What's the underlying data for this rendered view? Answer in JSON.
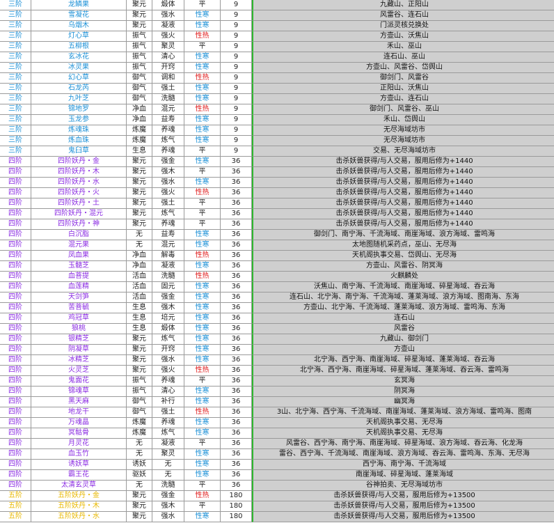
{
  "colors": {
    "grade_3": "#1a8fd6",
    "grade_4": "#8a2be2",
    "grade_5": "#e8b800",
    "hot": "#e01818",
    "cold": "#1a8fd6",
    "source_bg": "#cfcfcf",
    "divider": "#2eb82e"
  },
  "rows": [
    {
      "grade": "三阶",
      "name": "龙鳞果",
      "effect": "聚元",
      "prop": "煅体",
      "temp": "平",
      "level": "9",
      "source": "九藏山、正阳山"
    },
    {
      "grade": "三阶",
      "name": "雪凝花",
      "effect": "聚元",
      "prop": "强水",
      "temp": "性寒",
      "level": "9",
      "source": "风雷谷、连石山"
    },
    {
      "grade": "三阶",
      "name": "乌烟木",
      "effect": "聚元",
      "prop": "凝液",
      "temp": "性寒",
      "level": "9",
      "source": "门派灵核兑换处"
    },
    {
      "grade": "三阶",
      "name": "灯心草",
      "effect": "振气",
      "prop": "强火",
      "temp": "性热",
      "level": "9",
      "source": "方壶山、沃焦山"
    },
    {
      "grade": "三阶",
      "name": "五柳根",
      "effect": "振气",
      "prop": "聚灵",
      "temp": "平",
      "level": "9",
      "source": "禾山、巫山"
    },
    {
      "grade": "三阶",
      "name": "玄冰花",
      "effect": "振气",
      "prop": "清心",
      "temp": "性寒",
      "level": "9",
      "source": "连石山、巫山"
    },
    {
      "grade": "三阶",
      "name": "冰灵果",
      "effect": "振气",
      "prop": "开窍",
      "temp": "性寒",
      "level": "9",
      "source": "方壶山、风雷谷、岱舆山"
    },
    {
      "grade": "三阶",
      "name": "幻心草",
      "effect": "御气",
      "prop": "调和",
      "temp": "性热",
      "level": "9",
      "source": "御剑门、风雷谷"
    },
    {
      "grade": "三阶",
      "name": "石龙芮",
      "effect": "御气",
      "prop": "强土",
      "temp": "性寒",
      "level": "9",
      "source": "正阳山、沃焦山"
    },
    {
      "grade": "三阶",
      "name": "九叶芝",
      "effect": "御气",
      "prop": "洗髓",
      "temp": "性寒",
      "level": "9",
      "source": "方壶山、连石山"
    },
    {
      "grade": "三阶",
      "name": "锦地罗",
      "effect": "净血",
      "prop": "混元",
      "temp": "性热",
      "level": "9",
      "source": "御剑门、风雷谷、巫山"
    },
    {
      "grade": "三阶",
      "name": "玉龙参",
      "effect": "净血",
      "prop": "益寿",
      "temp": "性寒",
      "level": "9",
      "source": "禾山、岱舆山"
    },
    {
      "grade": "三阶",
      "name": "炼魂珠",
      "effect": "炼魔",
      "prop": "养魂",
      "temp": "性寒",
      "level": "9",
      "source": "无尽海域坊市"
    },
    {
      "grade": "三阶",
      "name": "炼血珠",
      "effect": "炼魔",
      "prop": "炼气",
      "temp": "性寒",
      "level": "9",
      "source": "无尽海域坊市"
    },
    {
      "grade": "三阶",
      "name": "鬼臼草",
      "effect": "生息",
      "prop": "养魂",
      "temp": "平",
      "level": "9",
      "source": "交易、无尽海域坊市"
    },
    {
      "grade": "四阶",
      "name": "四阶妖丹・金",
      "effect": "聚元",
      "prop": "强金",
      "temp": "性寒",
      "level": "36",
      "source": "击杀妖兽获得/与人交易，服用后修为+1440"
    },
    {
      "grade": "四阶",
      "name": "四阶妖丹・木",
      "effect": "聚元",
      "prop": "强木",
      "temp": "平",
      "level": "36",
      "source": "击杀妖兽获得/与人交易，服用后修为+1440"
    },
    {
      "grade": "四阶",
      "name": "四阶妖丹・水",
      "effect": "聚元",
      "prop": "强水",
      "temp": "性寒",
      "level": "36",
      "source": "击杀妖兽获得/与人交易，服用后修为+1440"
    },
    {
      "grade": "四阶",
      "name": "四阶妖丹・火",
      "effect": "聚元",
      "prop": "强火",
      "temp": "性热",
      "level": "36",
      "source": "击杀妖兽获得/与人交易，服用后修为+1440"
    },
    {
      "grade": "四阶",
      "name": "四阶妖丹・土",
      "effect": "聚元",
      "prop": "强土",
      "temp": "平",
      "level": "36",
      "source": "击杀妖兽获得/与人交易，服用后修为+1440"
    },
    {
      "grade": "四阶",
      "name": "四阶妖丹・混元",
      "effect": "聚元",
      "prop": "炼气",
      "temp": "平",
      "level": "36",
      "source": "击杀妖兽获得/与人交易，服用后修为+1440"
    },
    {
      "grade": "四阶",
      "name": "四阶妖丹・神",
      "effect": "聚元",
      "prop": "养魂",
      "temp": "平",
      "level": "36",
      "source": "击杀妖兽获得/与人交易，服用后修为+1440"
    },
    {
      "grade": "四阶",
      "name": "白沉脂",
      "effect": "无",
      "prop": "益寿",
      "temp": "性寒",
      "level": "36",
      "source": "御剑门、南宁海、千流海域、南崖海域、浪方海域、雷鸣海"
    },
    {
      "grade": "四阶",
      "name": "混元果",
      "effect": "无",
      "prop": "混元",
      "temp": "性寒",
      "level": "36",
      "source": "太地图随机采药点，巫山、无尽海"
    },
    {
      "grade": "四阶",
      "name": "凤血果",
      "effect": "净血",
      "prop": "解毒",
      "temp": "性热",
      "level": "36",
      "source": "天机阁执事交易、岱舆山、无尽海"
    },
    {
      "grade": "四阶",
      "name": "玉髓芝",
      "effect": "净血",
      "prop": "凝液",
      "temp": "性寒",
      "level": "36",
      "source": "方壶山、风雷谷、阴冥海"
    },
    {
      "grade": "四阶",
      "name": "血菩提",
      "effect": "活血",
      "prop": "洗髓",
      "temp": "性热",
      "level": "36",
      "source": "火麒麟处"
    },
    {
      "grade": "四阶",
      "name": "血莲精",
      "effect": "活血",
      "prop": "固元",
      "temp": "性寒",
      "level": "36",
      "source": "沃焦山、南宁海、千流海域、南崖海域、碎星海域、吞云海"
    },
    {
      "grade": "四阶",
      "name": "天剑笋",
      "effect": "活血",
      "prop": "强金",
      "temp": "性寒",
      "level": "36",
      "source": "连石山、北宁海、南宁海、千流海域、蓬莱海域、浪方海域、图南海、东海"
    },
    {
      "grade": "四阶",
      "name": "苦菩毓",
      "effect": "生息",
      "prop": "强木",
      "temp": "性寒",
      "level": "36",
      "source": "方壶山、北宁海、千流海域、蓬莱海域、浪方海域、雷鸣海、东海"
    },
    {
      "grade": "四阶",
      "name": "鸡冠草",
      "effect": "生息",
      "prop": "培元",
      "temp": "性寒",
      "level": "36",
      "source": "连石山"
    },
    {
      "grade": "四阶",
      "name": "狼桃",
      "effect": "生息",
      "prop": "煅体",
      "temp": "性寒",
      "level": "36",
      "source": "风雷谷"
    },
    {
      "grade": "四阶",
      "name": "银精芝",
      "effect": "聚元",
      "prop": "炼气",
      "temp": "性寒",
      "level": "36",
      "source": "九藏山、御剑门"
    },
    {
      "grade": "四阶",
      "name": "阴凝草",
      "effect": "聚元",
      "prop": "开窍",
      "temp": "性寒",
      "level": "36",
      "source": "方壶山"
    },
    {
      "grade": "四阶",
      "name": "冰精芝",
      "effect": "聚元",
      "prop": "强水",
      "temp": "性寒",
      "level": "36",
      "source": "北宁海、西宁海、南崖海域、碎星海域、蓬莱海域、吞云海"
    },
    {
      "grade": "四阶",
      "name": "火灵芝",
      "effect": "聚元",
      "prop": "强火",
      "temp": "性热",
      "level": "36",
      "source": "北宁海、西宁海、南崖海域、碎星海域、蓬莱海域、吞云海、雷鸣海"
    },
    {
      "grade": "四阶",
      "name": "鬼面花",
      "effect": "振气",
      "prop": "养魂",
      "temp": "平",
      "level": "36",
      "source": "玄冥海"
    },
    {
      "grade": "四阶",
      "name": "锦魂草",
      "effect": "振气",
      "prop": "清心",
      "temp": "性寒",
      "level": "36",
      "source": "阴冥海"
    },
    {
      "grade": "四阶",
      "name": "黑天麻",
      "effect": "御气",
      "prop": "补行",
      "temp": "性寒",
      "level": "36",
      "source": "幽冥海"
    },
    {
      "grade": "四阶",
      "name": "地龙干",
      "effect": "御气",
      "prop": "强土",
      "temp": "性热",
      "level": "36",
      "source": "3山、北宁海、西宁海、千流海域、南崖海域、蓬莱海域、浪方海域、雷鸣海、图南"
    },
    {
      "grade": "四阶",
      "name": "万魂晶",
      "effect": "炼魔",
      "prop": "养魂",
      "temp": "性寒",
      "level": "36",
      "source": "天机阁执事交易、无尽海"
    },
    {
      "grade": "四阶",
      "name": "冥骷骨",
      "effect": "炼魔",
      "prop": "炼气",
      "temp": "性寒",
      "level": "36",
      "source": "天机阁执事交易、无尽海"
    },
    {
      "grade": "四阶",
      "name": "月灵花",
      "effect": "无",
      "prop": "凝液",
      "temp": "平",
      "level": "36",
      "source": "风雷谷、西宁海、南宁海、南崖海域、碎星海域、浪方海域、吞云海、化龙海"
    },
    {
      "grade": "四阶",
      "name": "血玉竹",
      "effect": "无",
      "prop": "聚灵",
      "temp": "性寒",
      "level": "36",
      "source": "雷谷、西宁海、千流海域、南崖海域、浪方海域、吞云海、雷鸣海、东海、无尽海"
    },
    {
      "grade": "四阶",
      "name": "诱妖草",
      "effect": "诱妖",
      "prop": "无",
      "temp": "性寒",
      "level": "36",
      "source": "西宁海、南宁海、千流海域"
    },
    {
      "grade": "四阶",
      "name": "霸王花",
      "effect": "驱妖",
      "prop": "无",
      "temp": "性寒",
      "level": "36",
      "source": "南崖海域、碎星海域、蓬莱海域"
    },
    {
      "grade": "四阶",
      "name": "太清玄灵草",
      "effect": "无",
      "prop": "洗髓",
      "temp": "平",
      "level": "36",
      "source": "谷神拍卖、无尽海域坊市"
    },
    {
      "grade": "五阶",
      "name": "五阶妖丹・金",
      "effect": "聚元",
      "prop": "强金",
      "temp": "性热",
      "level": "180",
      "source": "击杀妖兽获得/与人交易，服用后修为+13500"
    },
    {
      "grade": "五阶",
      "name": "五阶妖丹・木",
      "effect": "聚元",
      "prop": "强木",
      "temp": "平",
      "level": "180",
      "source": "击杀妖兽获得/与人交易，服用后修为+13500"
    },
    {
      "grade": "五阶",
      "name": "五阶妖丹・水",
      "effect": "聚元",
      "prop": "强水",
      "temp": "性寒",
      "level": "180",
      "source": "击杀妖兽获得/与人交易，服用后修为+13500"
    }
  ]
}
